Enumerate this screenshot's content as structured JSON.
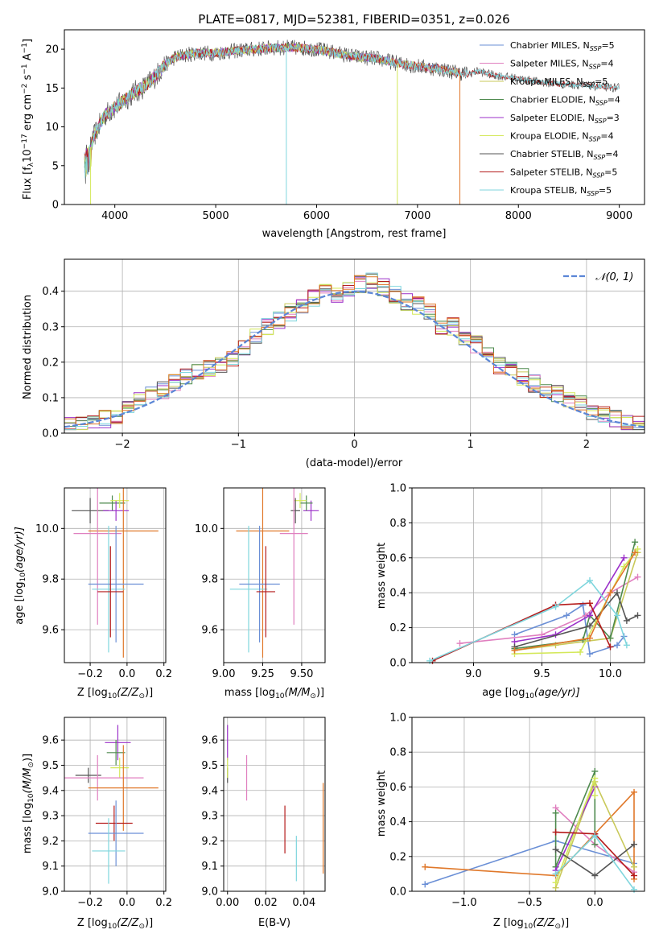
{
  "title": "PLATE=0817, MJD=52381, FIBERID=0351, z=0.026",
  "colors": {
    "Chabrier MILES": "#6a8fd6",
    "Salpeter MILES": "#e07fbf",
    "Kroupa MILES": "#c9c95a",
    "Chabrier ELODIE": "#4e8a4e",
    "Salpeter ELODIE": "#9b30c9",
    "Kroupa ELODIE": "#d4e85a",
    "Chabrier STELIB": "#555555",
    "Salpeter STELIB": "#b51b1b",
    "Kroupa STELIB": "#7fd6dd",
    "orange": "#e0782a",
    "gauss": "#5b86d6"
  },
  "panels": {
    "spectrum": {
      "xlabel": "wavelength [Angstrom, rest frame]",
      "ylabel_main": "Flux [f",
      "ylabel_sub": "λ",
      "ylabel_rest": "10",
      "ylabel_exp": "−17",
      "ylabel_unit": " erg cm",
      "ylabel_exp2": "−2",
      "ylabel_unit2": " s",
      "ylabel_exp3": "−1",
      "ylabel_unit3": " A",
      "ylabel_exp4": "−1",
      "ylabel_end": "]",
      "xticks": [
        "4000",
        "5000",
        "6000",
        "7000",
        "8000",
        "9000"
      ],
      "yticks": [
        "0",
        "5",
        "10",
        "15",
        "20"
      ],
      "legend": [
        {
          "name": "Chabrier MILES, N",
          "sub": "SSP",
          "val": "=5"
        },
        {
          "name": "Salpeter MILES, N",
          "sub": "SSP",
          "val": "=4"
        },
        {
          "name": "Kroupa MILES, N",
          "sub": "SSP",
          "val": "=5"
        },
        {
          "name": "Chabrier ELODIE, N",
          "sub": "SSP",
          "val": "=4"
        },
        {
          "name": "Salpeter ELODIE, N",
          "sub": "SSP",
          "val": "=3"
        },
        {
          "name": "Kroupa ELODIE, N",
          "sub": "SSP",
          "val": "=4"
        },
        {
          "name": "Chabrier STELIB, N",
          "sub": "SSP",
          "val": "=4"
        },
        {
          "name": "Salpeter STELIB, N",
          "sub": "SSP",
          "val": "=5"
        },
        {
          "name": "Kroupa STELIB, N",
          "sub": "SSP",
          "val": "=5"
        }
      ]
    },
    "residuals": {
      "xlabel": "(data-model)/error",
      "ylabel": "Normed distribution",
      "xticks": [
        "−2",
        "−1",
        "0",
        "1",
        "2"
      ],
      "yticks": [
        "0.0",
        "0.1",
        "0.2",
        "0.3",
        "0.4"
      ],
      "legend": "𝒩(0, 1)"
    },
    "age_Z": {
      "xlabel": "Z [log",
      "xlabel_sub": "10",
      "xlabel_rest": "(Z/Z",
      "xlabel_sun": "⊙",
      "xlabel_end": ")]",
      "ylabel": "age  [log",
      "ylabel_sub": "10",
      "ylabel_rest": "(age/yr)]",
      "xticks": [
        "−0.2",
        "0.0",
        "0.2"
      ],
      "yticks": [
        "9.6",
        "9.8",
        "10.0"
      ]
    },
    "age_mass": {
      "xlabel": "mass [log",
      "xlabel_sub": "10",
      "xlabel_rest": "(M/M",
      "xlabel_sun": "⊙",
      "xlabel_end": ")]",
      "xticks": [
        "9.00",
        "9.25",
        "9.50"
      ],
      "yticks": [
        "9.6",
        "9.8",
        "10.0"
      ]
    },
    "weight_age": {
      "xlabel": "age  [log",
      "xlabel_sub": "10",
      "xlabel_rest": "(age/yr)]",
      "ylabel": "mass weight",
      "xticks": [
        "9.0",
        "9.5",
        "10.0"
      ],
      "yticks": [
        "0.0",
        "0.2",
        "0.4",
        "0.6",
        "0.8",
        "1.0"
      ]
    },
    "mass_Z": {
      "xlabel": "Z [log",
      "xlabel_sub": "10",
      "xlabel_rest": "(Z/Z",
      "xlabel_sun": "⊙",
      "xlabel_end": ")]",
      "ylabel": "mass [log",
      "ylabel_sub": "10",
      "ylabel_rest": "(M/M",
      "ylabel_sun": "⊙",
      "ylabel_end": ")]",
      "xticks": [
        "−0.2",
        "0.0",
        "0.2"
      ],
      "yticks": [
        "9.0",
        "9.1",
        "9.2",
        "9.3",
        "9.4",
        "9.5",
        "9.6"
      ]
    },
    "mass_ebv": {
      "xlabel": "E(B-V)",
      "xticks": [
        "0.00",
        "0.02",
        "0.04"
      ],
      "yticks": [
        "9.0",
        "9.1",
        "9.2",
        "9.3",
        "9.4",
        "9.5",
        "9.6"
      ]
    },
    "weight_Z": {
      "xlabel": "Z [log",
      "xlabel_sub": "10",
      "xlabel_rest": "(Z/Z",
      "xlabel_sun": "⊙",
      "xlabel_end": ")]",
      "ylabel": "mass weight",
      "xticks": [
        "−1.0",
        "−0.5",
        "0.0"
      ],
      "yticks": [
        "0.0",
        "0.2",
        "0.4",
        "0.6",
        "0.8",
        "1.0"
      ]
    }
  },
  "chart_data": [
    {
      "type": "line",
      "panel": "spectrum",
      "xlim": [
        3500,
        9250
      ],
      "ylim": [
        0,
        22.5
      ],
      "continuum_x": [
        3700,
        3750,
        3800,
        3900,
        4000,
        4100,
        4200,
        4300,
        4400,
        4500,
        4600,
        4800,
        5000,
        5200,
        5400,
        5600,
        5800,
        6000,
        6200,
        6400,
        6600,
        6800,
        7000,
        7200,
        7400,
        7500,
        7600,
        7700,
        7800,
        8000,
        8200,
        8400,
        8600,
        8800,
        9000
      ],
      "continuum_y": [
        6,
        7,
        9,
        11.5,
        12.5,
        13.5,
        14.5,
        15.2,
        16.5,
        18,
        19,
        19.5,
        19.5,
        19.8,
        20,
        20.2,
        20.2,
        20,
        19.5,
        19,
        18.8,
        18.2,
        17.8,
        17.5,
        17,
        16.8,
        17.2,
        16.8,
        16.6,
        16.2,
        15.8,
        15.5,
        15.4,
        15.2,
        15
      ],
      "series": [
        {
          "name": "Chabrier MILES",
          "color_key": "Chabrier MILES",
          "max_x": 7400
        },
        {
          "name": "Salpeter MILES",
          "color_key": "Salpeter MILES",
          "max_x": 7400
        },
        {
          "name": "Kroupa MILES",
          "color_key": "Kroupa MILES",
          "max_x": 7400
        },
        {
          "name": "Chabrier ELODIE",
          "color_key": "Chabrier ELODIE",
          "max_x": 6800
        },
        {
          "name": "Salpeter ELODIE",
          "color_key": "Salpeter ELODIE",
          "max_x": 6800
        },
        {
          "name": "Kroupa ELODIE",
          "color_key": "Kroupa ELODIE",
          "max_x": 6800
        },
        {
          "name": "Chabrier STELIB",
          "color_key": "Chabrier STELIB",
          "max_x": 9000
        },
        {
          "name": "Salpeter STELIB",
          "color_key": "Salpeter STELIB",
          "max_x": 9000
        },
        {
          "name": "Kroupa STELIB",
          "color_key": "Kroupa STELIB",
          "max_x": 9000
        }
      ],
      "data": {
        "x_min": 3700,
        "x_max": 9000,
        "step": 5
      }
    },
    {
      "type": "histogram",
      "panel": "residuals",
      "xlim": [
        -2.5,
        2.5
      ],
      "ylim": [
        0,
        0.49
      ],
      "bin_width": 0.1,
      "base_x": [
        -2.5,
        -2.4,
        -2.3,
        -2.2,
        -2.1,
        -2.0,
        -1.9,
        -1.8,
        -1.7,
        -1.6,
        -1.5,
        -1.4,
        -1.3,
        -1.2,
        -1.1,
        -1.0,
        -0.9,
        -0.8,
        -0.7,
        -0.6,
        -0.5,
        -0.4,
        -0.3,
        -0.2,
        -0.1,
        0.0,
        0.1,
        0.2,
        0.3,
        0.4,
        0.5,
        0.6,
        0.7,
        0.8,
        0.9,
        1.0,
        1.1,
        1.2,
        1.3,
        1.4,
        1.5,
        1.6,
        1.7,
        1.8,
        1.9,
        2.0,
        2.1,
        2.2,
        2.3,
        2.4
      ],
      "base_y": [
        0.02,
        0.025,
        0.03,
        0.04,
        0.05,
        0.07,
        0.09,
        0.11,
        0.12,
        0.14,
        0.16,
        0.17,
        0.18,
        0.19,
        0.21,
        0.24,
        0.27,
        0.3,
        0.32,
        0.34,
        0.36,
        0.38,
        0.41,
        0.39,
        0.4,
        0.42,
        0.43,
        0.41,
        0.39,
        0.37,
        0.36,
        0.34,
        0.3,
        0.3,
        0.27,
        0.25,
        0.22,
        0.19,
        0.18,
        0.16,
        0.14,
        0.12,
        0.11,
        0.09,
        0.08,
        0.06,
        0.05,
        0.04,
        0.03,
        0.025
      ],
      "series_names": [
        "Chabrier MILES",
        "Salpeter MILES",
        "Kroupa MILES",
        "Chabrier ELODIE",
        "Salpeter ELODIE",
        "Kroupa ELODIE",
        "Chabrier STELIB",
        "Salpeter STELIB",
        "Kroupa STELIB",
        "orange"
      ],
      "gaussian": {
        "mean": 0,
        "sigma": 1
      }
    },
    {
      "type": "errorbar",
      "panel": "age_Z",
      "xlim": [
        -0.34,
        0.21
      ],
      "ylim": [
        9.47,
        10.16
      ],
      "points": [
        {
          "c": "Chabrier STELIB",
          "x": -0.2,
          "xe": 0.1,
          "y": 10.07,
          "ye": 0.05
        },
        {
          "c": "Chabrier ELODIE",
          "x": -0.08,
          "xe": 0.07,
          "y": 10.1,
          "ye": 0.03
        },
        {
          "c": "Salpeter ELODIE",
          "x": -0.06,
          "xe": 0.07,
          "y": 10.07,
          "ye": 0.04
        },
        {
          "c": "Kroupa ELODIE",
          "x": -0.04,
          "xe": 0.05,
          "y": 10.11,
          "ye": 0.03
        },
        {
          "c": "orange",
          "x": -0.02,
          "xe": 0.19,
          "y": 9.99,
          "ye": 0.5
        },
        {
          "c": "Salpeter MILES",
          "x": -0.16,
          "xe": 0.13,
          "y": 9.98,
          "ye": 0.36
        },
        {
          "c": "Kroupa STELIB",
          "x": -0.1,
          "xe": 0.09,
          "y": 9.76,
          "ye": 0.25
        },
        {
          "c": "Chabrier MILES",
          "x": -0.06,
          "xe": 0.15,
          "y": 9.78,
          "ye": 0.23
        },
        {
          "c": "Salpeter STELIB",
          "x": -0.09,
          "xe": 0.07,
          "y": 9.75,
          "ye": 0.18
        }
      ]
    },
    {
      "type": "errorbar",
      "panel": "age_mass",
      "xlim": [
        9.0,
        9.65
      ],
      "ylim": [
        9.47,
        10.16
      ],
      "points": [
        {
          "c": "Salpeter ELODIE",
          "x": 9.56,
          "xe": 0.05,
          "y": 10.07,
          "ye": 0.04
        },
        {
          "c": "Chabrier ELODIE",
          "x": 9.53,
          "xe": 0.04,
          "y": 10.1,
          "ye": 0.03
        },
        {
          "c": "Kroupa ELODIE",
          "x": 9.49,
          "xe": 0.04,
          "y": 10.11,
          "ye": 0.03
        },
        {
          "c": "Chabrier STELIB",
          "x": 9.46,
          "xe": 0.03,
          "y": 10.07,
          "ye": 0.05
        },
        {
          "c": "Salpeter MILES",
          "x": 9.45,
          "xe": 0.09,
          "y": 9.98,
          "ye": 0.36
        },
        {
          "c": "orange",
          "x": 9.25,
          "xe": 0.17,
          "y": 9.99,
          "ye": 0.5
        },
        {
          "c": "Kroupa STELIB",
          "x": 9.16,
          "xe": 0.12,
          "y": 9.76,
          "ye": 0.25
        },
        {
          "c": "Chabrier MILES",
          "x": 9.23,
          "xe": 0.13,
          "y": 9.78,
          "ye": 0.23
        },
        {
          "c": "Salpeter STELIB",
          "x": 9.27,
          "xe": 0.06,
          "y": 9.75,
          "ye": 0.18
        }
      ]
    },
    {
      "type": "line",
      "panel": "weight_age",
      "xlim": [
        8.55,
        10.25
      ],
      "ylim": [
        0,
        1.0
      ],
      "series": [
        {
          "c": "Chabrier MILES",
          "x": [
            9.3,
            9.68,
            9.8,
            9.85,
            10.05,
            10.1
          ],
          "y": [
            0.16,
            0.27,
            0.33,
            0.05,
            0.1,
            0.15
          ]
        },
        {
          "c": "Salpeter MILES",
          "x": [
            8.9,
            9.5,
            9.82,
            10.0,
            10.2
          ],
          "y": [
            0.11,
            0.16,
            0.27,
            0.4,
            0.49
          ]
        },
        {
          "c": "Kroupa MILES",
          "x": [
            9.3,
            9.6,
            10.0,
            10.2
          ],
          "y": [
            0.07,
            0.1,
            0.14,
            0.63
          ]
        },
        {
          "c": "Chabrier ELODIE",
          "x": [
            9.3,
            9.8,
            9.85,
            10.0,
            10.18
          ],
          "y": [
            0.08,
            0.13,
            0.27,
            0.14,
            0.69
          ]
        },
        {
          "c": "Salpeter ELODIE",
          "x": [
            9.3,
            9.6,
            9.85,
            10.1
          ],
          "y": [
            0.12,
            0.16,
            0.27,
            0.6
          ]
        },
        {
          "c": "Kroupa ELODIE",
          "x": [
            9.3,
            9.78,
            10.1,
            10.2
          ],
          "y": [
            0.05,
            0.06,
            0.55,
            0.65
          ]
        },
        {
          "c": "Chabrier STELIB",
          "x": [
            9.3,
            9.85,
            10.05,
            10.12,
            10.2
          ],
          "y": [
            0.09,
            0.21,
            0.4,
            0.24,
            0.27
          ]
        },
        {
          "c": "Salpeter STELIB",
          "x": [
            8.7,
            9.6,
            9.85,
            10.0
          ],
          "y": [
            0.01,
            0.33,
            0.34,
            0.09
          ]
        },
        {
          "c": "Kroupa STELIB",
          "x": [
            8.68,
            9.6,
            9.85,
            10.05,
            10.12
          ],
          "y": [
            0.01,
            0.32,
            0.47,
            0.27,
            0.1
          ]
        },
        {
          "c": "orange",
          "x": [
            9.3,
            9.85,
            10.0,
            10.18
          ],
          "y": [
            0.07,
            0.14,
            0.4,
            0.63
          ]
        }
      ]
    },
    {
      "type": "errorbar",
      "panel": "mass_Z",
      "xlim": [
        -0.34,
        0.21
      ],
      "ylim": [
        9.0,
        9.69
      ],
      "points": [
        {
          "c": "Salpeter ELODIE",
          "x": -0.05,
          "xe": 0.07,
          "y": 9.59,
          "ye": 0.07
        },
        {
          "c": "Chabrier ELODIE",
          "x": -0.06,
          "xe": 0.05,
          "y": 9.55,
          "ye": 0.05
        },
        {
          "c": "Kroupa ELODIE",
          "x": -0.04,
          "xe": 0.05,
          "y": 9.49,
          "ye": 0.04
        },
        {
          "c": "Chabrier STELIB",
          "x": -0.21,
          "xe": 0.07,
          "y": 9.46,
          "ye": 0.03
        },
        {
          "c": "Salpeter MILES",
          "x": -0.16,
          "xe": 0.25,
          "y": 9.45,
          "ye": 0.09
        },
        {
          "c": "orange",
          "x": -0.02,
          "xe": 0.19,
          "y": 9.41,
          "ye": 0.17
        },
        {
          "c": "Salpeter STELIB",
          "x": -0.07,
          "xe": 0.1,
          "y": 9.27,
          "ye": 0.07
        },
        {
          "c": "Chabrier MILES",
          "x": -0.06,
          "xe": 0.15,
          "y": 9.23,
          "ye": 0.13
        },
        {
          "c": "Kroupa STELIB",
          "x": -0.1,
          "xe": 0.09,
          "y": 9.16,
          "ye": 0.13
        }
      ]
    },
    {
      "type": "errorbar",
      "panel": "mass_ebv",
      "xlim": [
        -0.002,
        0.051
      ],
      "ylim": [
        9.0,
        9.69
      ],
      "points": [
        {
          "c": "Salpeter ELODIE",
          "x": 0.0,
          "xe": 0,
          "y": 9.59,
          "ye": 0.07
        },
        {
          "c": "Chabrier STELIB",
          "x": 0.0,
          "xe": 0,
          "y": 9.46,
          "ye": 0.03
        },
        {
          "c": "Kroupa ELODIE",
          "x": 0.0,
          "xe": 0,
          "y": 9.49,
          "ye": 0.04
        },
        {
          "c": "Salpeter MILES",
          "x": 0.01,
          "xe": 0,
          "y": 9.45,
          "ye": 0.09
        },
        {
          "c": "Salpeter STELIB",
          "x": 0.03,
          "xe": 0,
          "y": 9.245,
          "ye": 0.095
        },
        {
          "c": "Kroupa STELIB",
          "x": 0.036,
          "xe": 0,
          "y": 9.13,
          "ye": 0.09
        },
        {
          "c": "orange",
          "x": 0.05,
          "xe": 0,
          "y": 9.25,
          "ye": 0.18
        }
      ]
    },
    {
      "type": "line",
      "panel": "weight_Z",
      "xlim": [
        -1.4,
        0.38
      ],
      "ylim": [
        0,
        1.0
      ],
      "series": [
        {
          "c": "Chabrier MILES",
          "x": [
            -1.3,
            -0.3,
            0.3
          ],
          "y": [
            0.04,
            0.29,
            0.16
          ]
        },
        {
          "c": "orange",
          "x": [
            -1.3,
            -0.3,
            0.0,
            0.3,
            0.3
          ],
          "y": [
            0.14,
            0.09,
            0.33,
            0.57,
            0.07
          ]
        },
        {
          "c": "Salpeter MILES",
          "x": [
            -0.3,
            0.0,
            0.3
          ],
          "y": [
            0.48,
            0.27,
            0.11
          ]
        },
        {
          "c": "Kroupa MILES",
          "x": [
            -0.3,
            0.0,
            0.3
          ],
          "y": [
            0.02,
            0.63,
            0.14
          ]
        },
        {
          "c": "Chabrier ELODIE",
          "x": [
            -0.3,
            -0.3,
            0.0,
            0.0
          ],
          "y": [
            0.45,
            0.14,
            0.69,
            0.27
          ]
        },
        {
          "c": "Salpeter ELODIE",
          "x": [
            -0.3,
            0.0
          ],
          "y": [
            0.12,
            0.6
          ]
        },
        {
          "c": "Kroupa ELODIE",
          "x": [
            -0.3,
            0.0,
            0.0
          ],
          "y": [
            0.05,
            0.65,
            0.55
          ]
        },
        {
          "c": "Chabrier STELIB",
          "x": [
            -0.3,
            0.0,
            0.3
          ],
          "y": [
            0.24,
            0.09,
            0.27
          ]
        },
        {
          "c": "Salpeter STELIB",
          "x": [
            -0.3,
            0.0,
            0.3
          ],
          "y": [
            0.34,
            0.33,
            0.09
          ]
        },
        {
          "c": "Kroupa STELIB",
          "x": [
            -0.3,
            0.0,
            0.3
          ],
          "y": [
            0.1,
            0.32,
            0.01
          ]
        }
      ]
    }
  ]
}
